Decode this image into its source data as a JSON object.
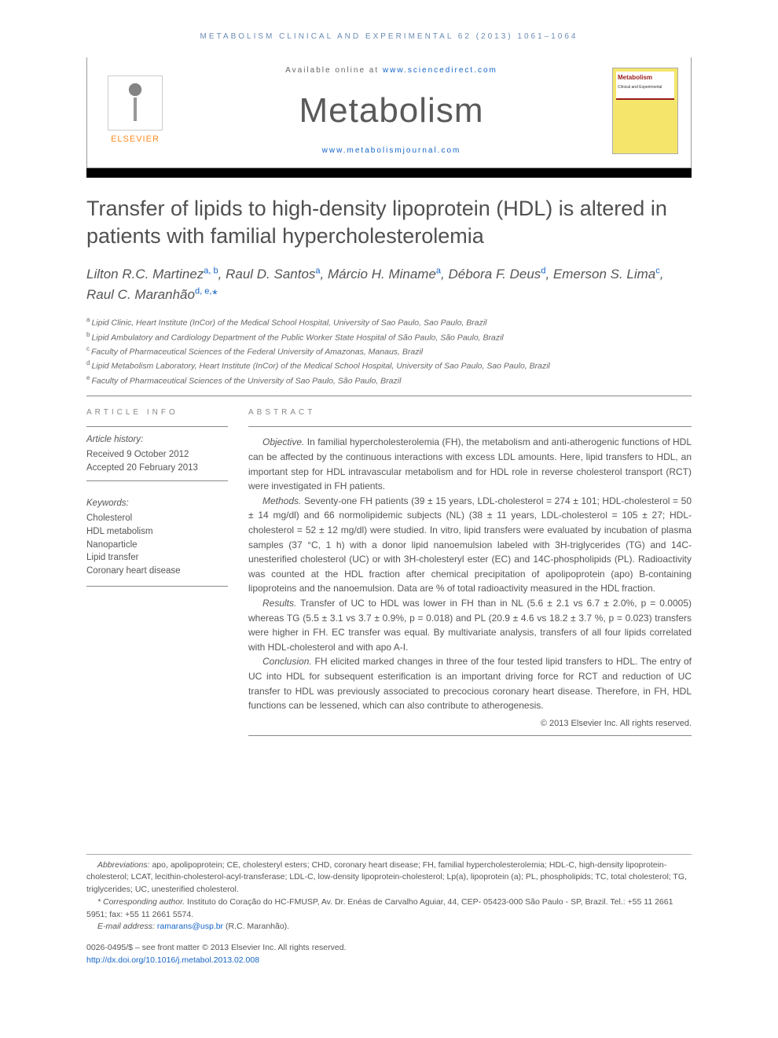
{
  "running_head": "METABOLISM CLINICAL AND EXPERIMENTAL 62 (2013) 1061–1064",
  "masthead": {
    "publisher_name": "ELSEVIER",
    "available_prefix": "Available online at ",
    "available_url": "www.sciencedirect.com",
    "journal_name": "Metabolism",
    "journal_url": "www.metabolismjournal.com",
    "cover_title": "Metabolism",
    "cover_subtitle": "Clinical and Experimental"
  },
  "title": "Transfer of lipids to high-density lipoprotein (HDL) is altered in patients with familial hypercholesterolemia",
  "authors_html": "Lilton R.C. Martinez<sup>a, b</sup>, Raul D. Santos<sup>a</sup>, Márcio H. Miname<sup>a</sup>, Débora F. Deus<sup>d</sup>, Emerson S. Lima<sup>c</sup>, Raul C. Maranhão<sup>d, e,</sup><span class=\"corr\">*</span>",
  "affiliations": [
    {
      "s": "a",
      "t": "Lipid Clinic, Heart Institute (InCor) of the Medical School Hospital, University of Sao Paulo, Sao Paulo, Brazil"
    },
    {
      "s": "b",
      "t": "Lipid Ambulatory and Cardiology Department of the Public Worker State Hospital of São Paulo, São Paulo, Brazil"
    },
    {
      "s": "c",
      "t": "Faculty of Pharmaceutical Sciences of the Federal University of Amazonas, Manaus, Brazil"
    },
    {
      "s": "d",
      "t": "Lipid Metabolism Laboratory, Heart Institute (InCor) of the Medical School Hospital, University of Sao Paulo, Sao Paulo, Brazil"
    },
    {
      "s": "e",
      "t": "Faculty of Pharmaceutical Sciences of the University of Sao Paulo, São Paulo, Brazil"
    }
  ],
  "article_info": {
    "label": "ARTICLE INFO",
    "history_label": "Article history:",
    "received": "Received 9 October 2012",
    "accepted": "Accepted 20 February 2013",
    "keywords_label": "Keywords:",
    "keywords": [
      "Cholesterol",
      "HDL metabolism",
      "Nanoparticle",
      "Lipid transfer",
      "Coronary heart disease"
    ]
  },
  "abstract": {
    "label": "ABSTRACT",
    "paragraphs": [
      {
        "lead": "Objective.",
        "body": " In familial hypercholesterolemia (FH), the metabolism and anti-atherogenic functions of HDL can be affected by the continuous interactions with excess LDL amounts. Here, lipid transfers to HDL, an important step for HDL intravascular metabolism and for HDL role in reverse cholesterol transport (RCT) were investigated in FH patients."
      },
      {
        "lead": "Methods.",
        "body": " Seventy-one FH patients (39 ± 15 years, LDL-cholesterol = 274 ± 101; HDL-cholesterol = 50 ± 14 mg/dl) and 66 normolipidemic subjects (NL) (38 ± 11 years, LDL-cholesterol = 105 ± 27; HDL-cholesterol = 52 ± 12 mg/dl) were studied. In vitro, lipid transfers were evaluated by incubation of plasma samples (37 °C, 1 h) with a donor lipid nanoemulsion labeled with 3H-triglycerides (TG) and 14C-unesterified cholesterol (UC) or with 3H-cholesteryl ester (EC) and 14C-phospholipids (PL). Radioactivity was counted at the HDL fraction after chemical precipitation of apolipoprotein (apo) B-containing lipoproteins and the nanoemulsion. Data are % of total radioactivity measured in the HDL fraction."
      },
      {
        "lead": "Results.",
        "body": " Transfer of UC to HDL was lower in FH than in NL (5.6 ± 2.1 vs 6.7 ± 2.0%, p = 0.0005) whereas TG (5.5 ± 3.1 vs 3.7 ± 0.9%, p = 0.018) and PL (20.9 ± 4.6 vs 18.2 ± 3.7 %, p = 0.023) transfers were higher in FH. EC transfer was equal. By multivariate analysis, transfers of all four lipids correlated with HDL-cholesterol and with apo A-I."
      },
      {
        "lead": "Conclusion.",
        "body": " FH elicited marked changes in three of the four tested lipid transfers to HDL. The entry of UC into HDL for subsequent esterification is an important driving force for RCT and reduction of UC transfer to HDL was previously associated to precocious coronary heart disease. Therefore, in FH, HDL functions can be lessened, which can also contribute to atherogenesis."
      }
    ],
    "copyright": "© 2013 Elsevier Inc. All rights reserved."
  },
  "footnotes": {
    "abbrev_lead": "Abbreviations:",
    "abbrev_body": " apo, apolipoprotein; CE, cholesteryl esters; CHD, coronary heart disease; FH, familial hypercholesterolemia; HDL-C, high-density lipoprotein-cholesterol; LCAT, lecithin-cholesterol-acyl-transferase; LDL-C, low-density lipoprotein-cholesterol; Lp(a), lipoprotein (a); PL, phospholipids; TC, total cholesterol; TG, triglycerides; UC, unesterified cholesterol.",
    "corr_lead": "* Corresponding author.",
    "corr_body": " Instituto do Coração do HC-FMUSP, Av. Dr. Enéas de Carvalho Aguiar, 44, CEP- 05423-000 São Paulo - SP, Brazil. Tel.: +55 11 2661 5951; fax: +55 11 2661 5574.",
    "email_lead": "E-mail address: ",
    "email": "ramarans@usp.br",
    "email_tail": " (R.C. Maranhão)."
  },
  "bottom": {
    "line1": "0026-0495/$ – see front matter © 2013 Elsevier Inc. All rights reserved.",
    "doi": "http://dx.doi.org/10.1016/j.metabol.2013.02.008"
  },
  "colors": {
    "link": "#1464c8",
    "publisher_orange": "#ff8a1f",
    "text_gray": "#555555"
  }
}
